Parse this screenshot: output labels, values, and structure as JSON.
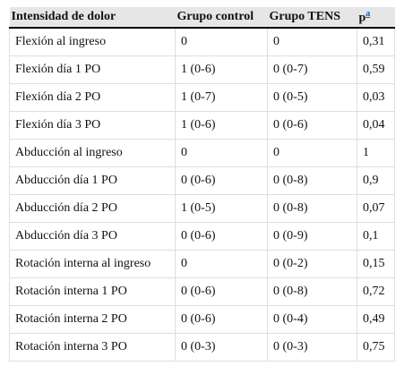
{
  "table": {
    "header": [
      "Intensidad de dolor",
      "Grupo control",
      "Grupo TENS",
      "p"
    ],
    "footnote_marker": "a",
    "rows": [
      [
        "Flexión al ingreso",
        "0",
        "0",
        "0,31"
      ],
      [
        "Flexión día 1 PO",
        "1 (0-6)",
        "0 (0-7)",
        "0,59"
      ],
      [
        "Flexión día 2 PO",
        "1 (0-7)",
        "0 (0-5)",
        "0,03"
      ],
      [
        "Flexión día 3 PO",
        "1 (0-6)",
        "0 (0-6)",
        "0,04"
      ],
      [
        "Abducción al ingreso",
        "0",
        "0",
        "1"
      ],
      [
        "Abducción día 1 PO",
        "0 (0-6)",
        "0 (0-8)",
        "0,9"
      ],
      [
        "Abducción día 2 PO",
        "1 (0-5)",
        "0 (0-8)",
        "0,07"
      ],
      [
        "Abducción día 3 PO",
        "0 (0-6)",
        "0 (0-9)",
        "0,1"
      ],
      [
        "Rotación interna al ingreso",
        "0",
        "0 (0-2)",
        "0,15"
      ],
      [
        "Rotación interna 1 PO",
        "0 (0-6)",
        "0 (0-8)",
        "0,72"
      ],
      [
        "Rotación interna 2 PO",
        "0 (0-6)",
        "0 (0-4)",
        "0,49"
      ],
      [
        "Rotación interna 3 PO",
        "0 (0-3)",
        "0 (0-3)",
        "0,75"
      ]
    ]
  }
}
